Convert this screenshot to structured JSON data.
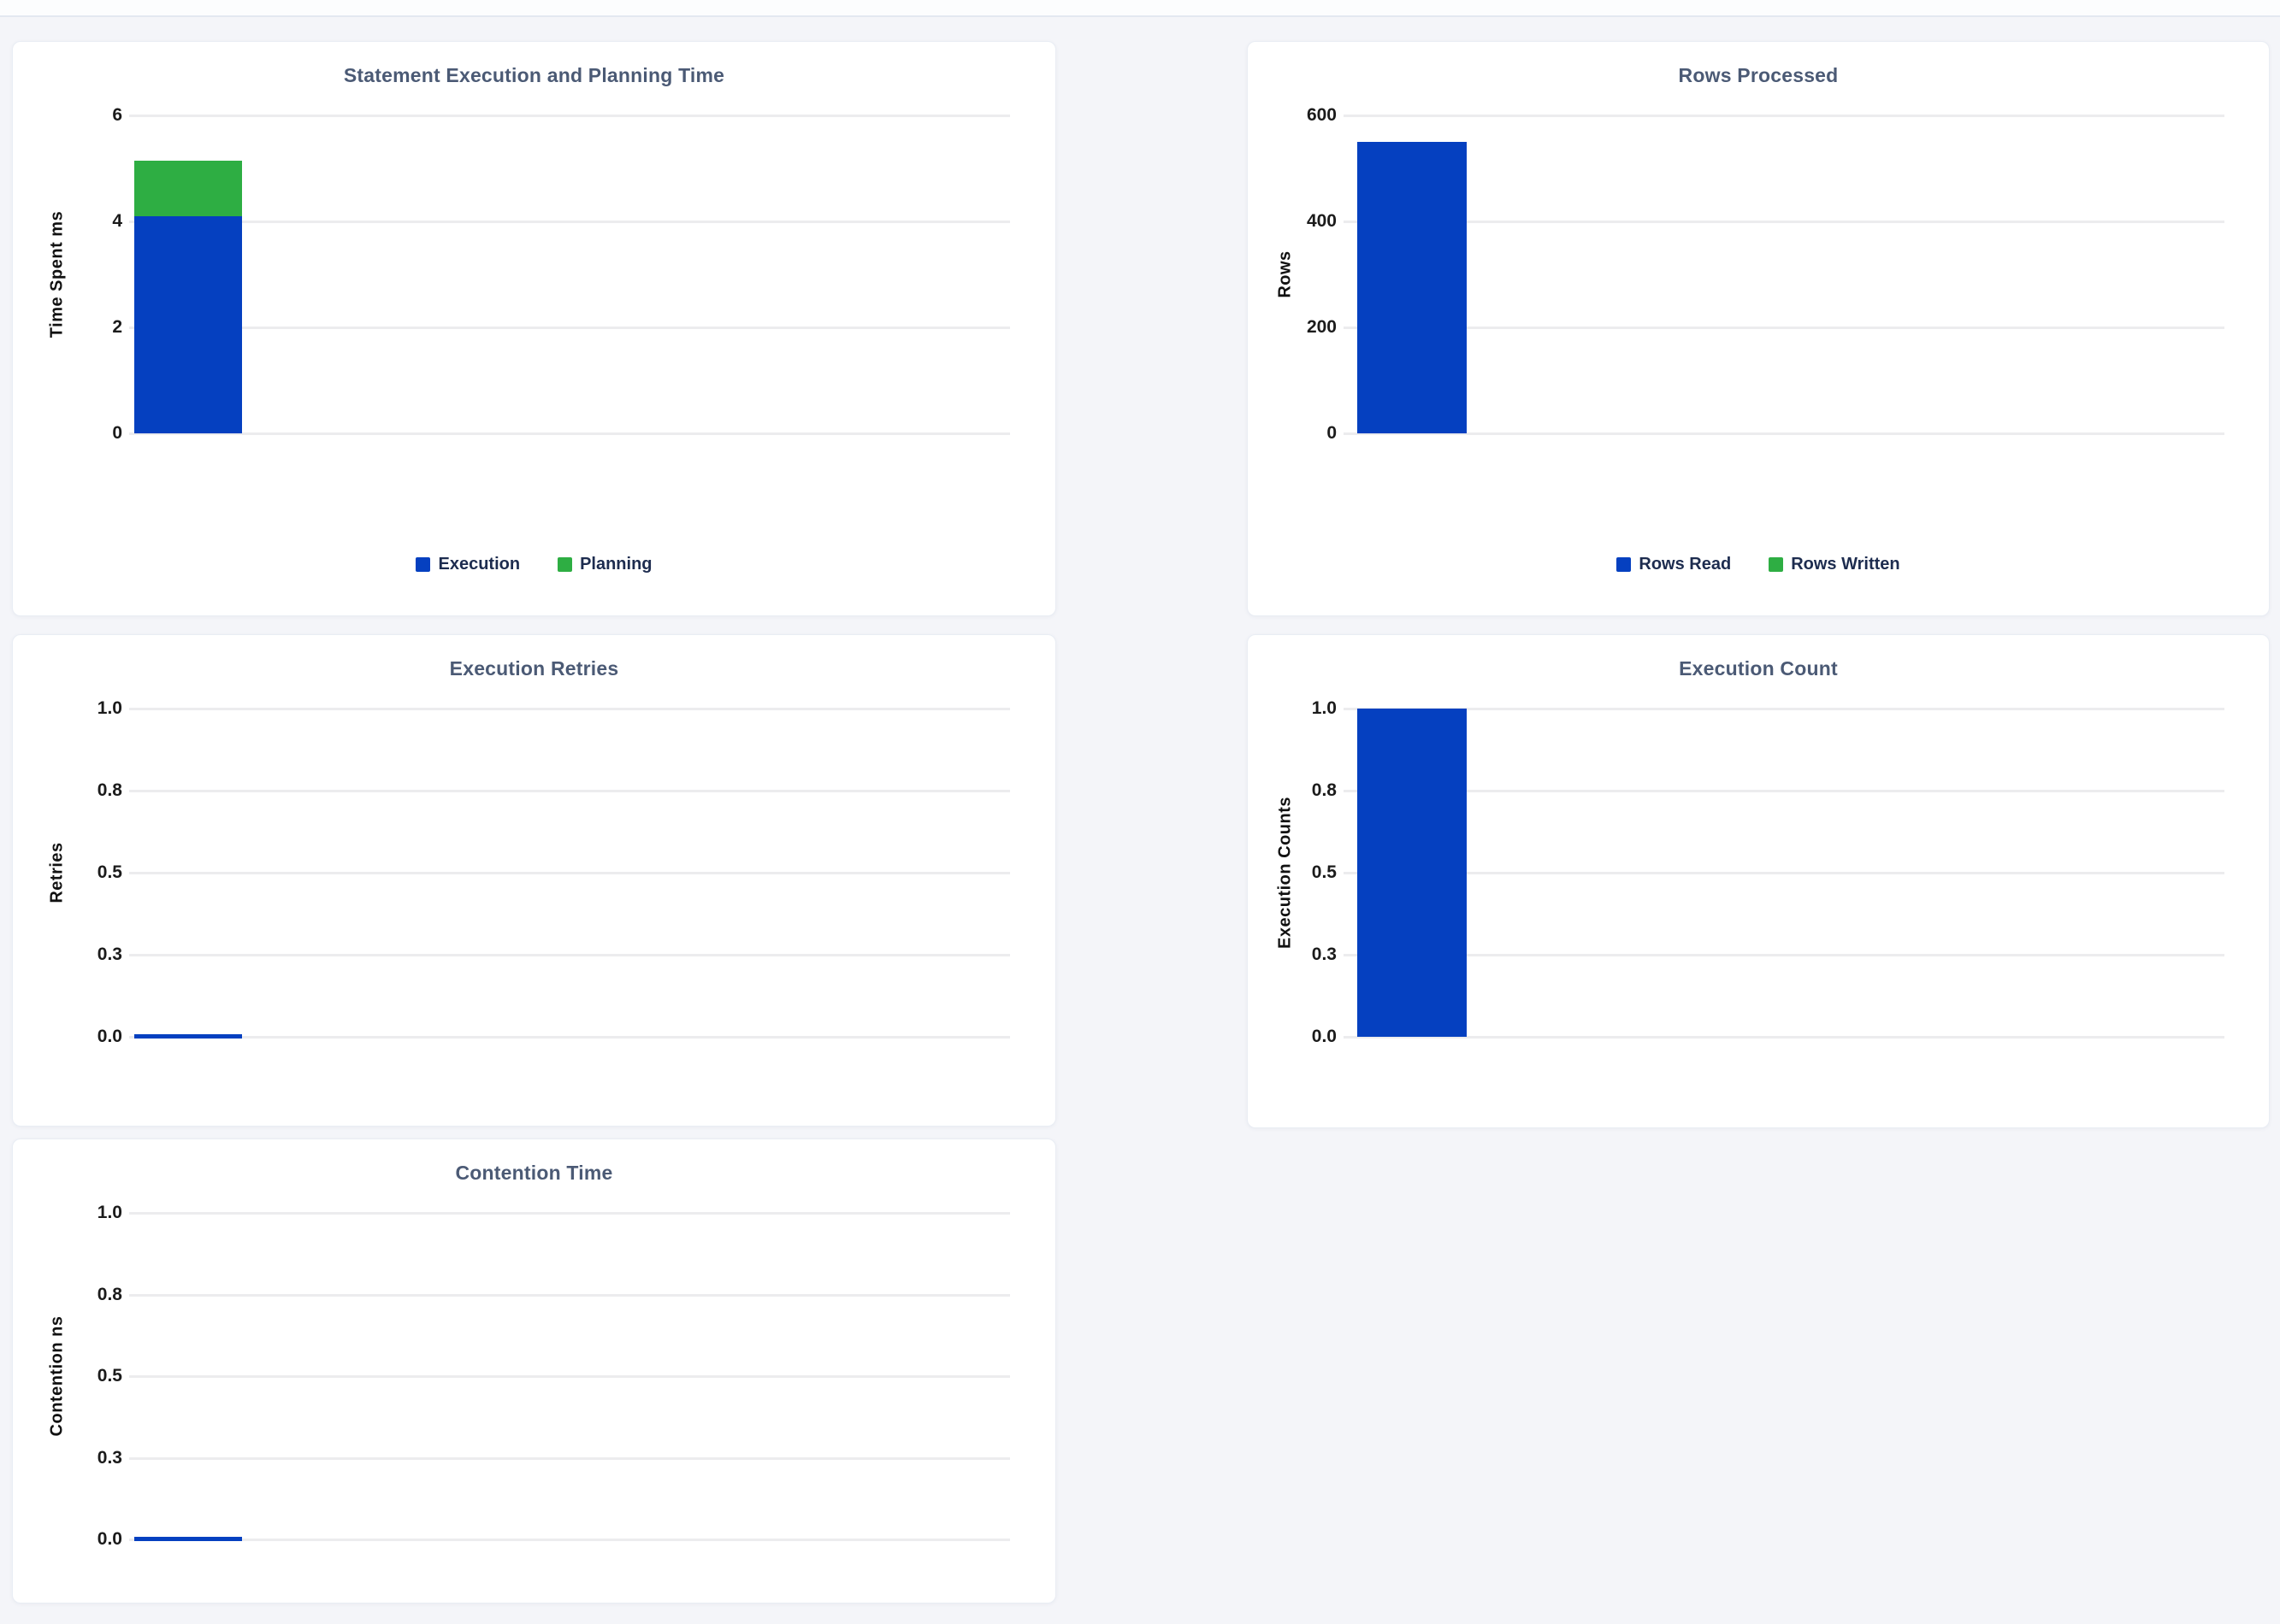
{
  "colors": {
    "bar_blue": "#0540c0",
    "bar_green": "#2eae43",
    "title_text": "#4b5a75",
    "legend_text": "#1d2c4f",
    "page_background": "#f4f5f9"
  },
  "chart_data": [
    {
      "type": "bar",
      "stacked": true,
      "title": "Statement Execution and Planning Time",
      "ylabel": "Time Spent ms",
      "ylim": [
        0,
        6
      ],
      "grid": true,
      "yticks": [
        {
          "label": "6",
          "value": 6
        },
        {
          "label": "4",
          "value": 4
        },
        {
          "label": "2",
          "value": 2
        },
        {
          "label": "0",
          "value": 0
        }
      ],
      "series": [
        {
          "name": "Execution",
          "value": 4.1,
          "color": "#0540c0"
        },
        {
          "name": "Planning",
          "value": 1.05,
          "color": "#2eae43"
        }
      ],
      "legend": [
        {
          "label": "Execution",
          "color": "#0540c0"
        },
        {
          "label": "Planning",
          "color": "#2eae43"
        }
      ],
      "legend_position": "bottom"
    },
    {
      "type": "bar",
      "stacked": true,
      "title": "Rows Processed",
      "ylabel": "Rows",
      "ylim": [
        0,
        600
      ],
      "grid": true,
      "yticks": [
        {
          "label": "600",
          "value": 600
        },
        {
          "label": "400",
          "value": 400
        },
        {
          "label": "200",
          "value": 200
        },
        {
          "label": "0",
          "value": 0
        }
      ],
      "series": [
        {
          "name": "Rows Read",
          "value": 550,
          "color": "#0540c0"
        },
        {
          "name": "Rows Written",
          "value": 0,
          "color": "#2eae43"
        }
      ],
      "legend": [
        {
          "label": "Rows Read",
          "color": "#0540c0"
        },
        {
          "label": "Rows Written",
          "color": "#2eae43"
        }
      ],
      "legend_position": "bottom"
    },
    {
      "type": "bar",
      "stacked": false,
      "title": "Execution Retries",
      "ylabel": "Retries",
      "ylim": [
        0,
        1
      ],
      "grid": true,
      "yticks": [
        {
          "label": "1.0",
          "value": 1
        },
        {
          "label": "0.8",
          "value": 0.75
        },
        {
          "label": "0.5",
          "value": 0.5
        },
        {
          "label": "0.3",
          "value": 0.25
        },
        {
          "label": "0.0",
          "value": 0
        }
      ],
      "series": [
        {
          "name": "Retries",
          "value": 0,
          "color": "#0540c0"
        }
      ],
      "legend": [],
      "legend_position": "none"
    },
    {
      "type": "bar",
      "stacked": false,
      "title": "Execution Count",
      "ylabel": "Execution Counts",
      "ylim": [
        0,
        1
      ],
      "grid": true,
      "yticks": [
        {
          "label": "1.0",
          "value": 1
        },
        {
          "label": "0.8",
          "value": 0.75
        },
        {
          "label": "0.5",
          "value": 0.5
        },
        {
          "label": "0.3",
          "value": 0.25
        },
        {
          "label": "0.0",
          "value": 0
        }
      ],
      "series": [
        {
          "name": "Execution Count",
          "value": 1,
          "color": "#0540c0"
        }
      ],
      "legend": [],
      "legend_position": "none"
    },
    {
      "type": "bar",
      "stacked": false,
      "title": "Contention Time",
      "ylabel": "Contention ns",
      "ylim": [
        0,
        1
      ],
      "grid": true,
      "yticks": [
        {
          "label": "1.0",
          "value": 1
        },
        {
          "label": "0.8",
          "value": 0.75
        },
        {
          "label": "0.5",
          "value": 0.5
        },
        {
          "label": "0.3",
          "value": 0.25
        },
        {
          "label": "0.0",
          "value": 0
        }
      ],
      "series": [
        {
          "name": "Contention",
          "value": 0,
          "color": "#0540c0"
        }
      ],
      "legend": [],
      "legend_position": "none"
    }
  ]
}
